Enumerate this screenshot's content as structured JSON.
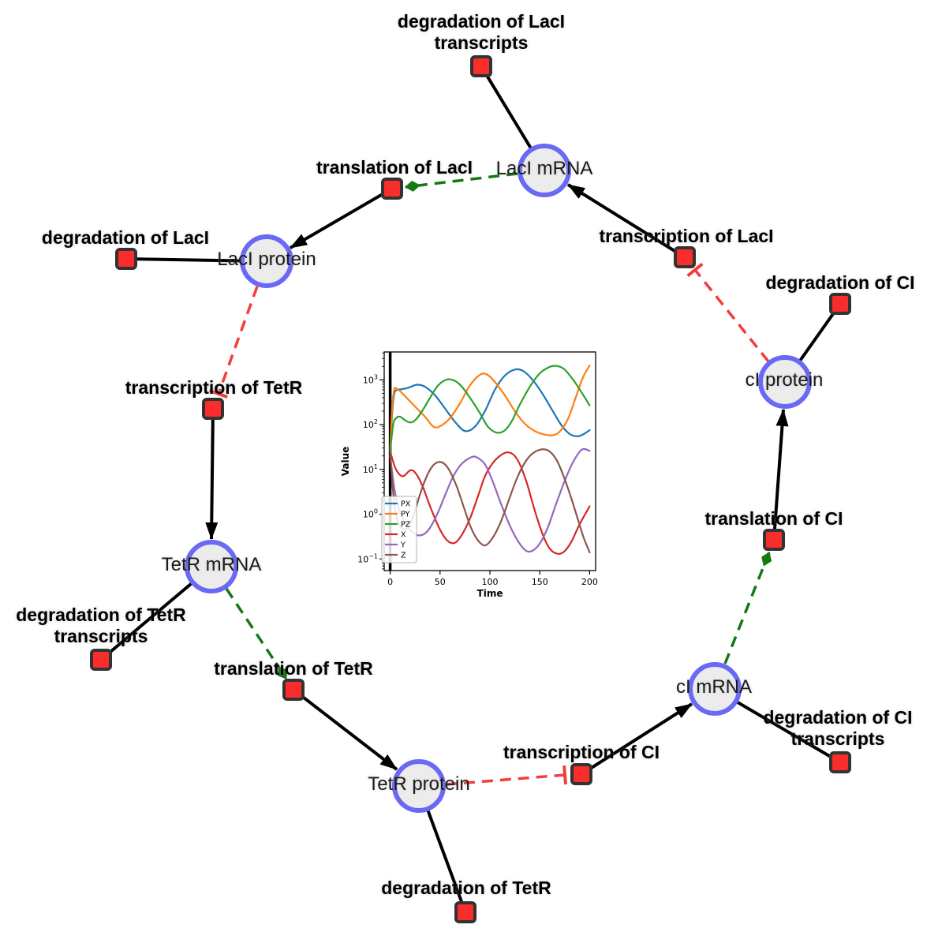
{
  "diagram": {
    "title": "repressilator gene regulatory network",
    "colors": {
      "species_fill": "#ececec",
      "species_border": "#6969f5",
      "reaction_fill": "#fa2d2d",
      "reaction_border": "#333333",
      "edge": "#000000",
      "modifier": "#147814",
      "inhibition": "#f53c3c",
      "background": "#ffffff"
    },
    "species": [
      {
        "label": "LacI mRNA"
      },
      {
        "label": "LacI protein"
      },
      {
        "label": "TetR mRNA"
      },
      {
        "label": "TetR protein"
      },
      {
        "label": "cI mRNA"
      },
      {
        "label": "cI protein"
      }
    ],
    "reactions": [
      {
        "label": "degradation of LacI",
        "label2": "transcripts"
      },
      {
        "label": "translation of LacI"
      },
      {
        "label": "degradation of LacI"
      },
      {
        "label": "transcription of LacI"
      },
      {
        "label": "degradation of CI"
      },
      {
        "label": "transcription of TetR"
      },
      {
        "label": "degradation of TetR",
        "label2": "transcripts"
      },
      {
        "label": "translation of TetR"
      },
      {
        "label": "degradation of TetR"
      },
      {
        "label": "transcription of CI"
      },
      {
        "label": "degradation of CI",
        "label2": "transcripts"
      },
      {
        "label": "translation of CI"
      }
    ]
  },
  "chart_data": {
    "type": "line",
    "title": "",
    "xlabel": "Time",
    "ylabel": "Value",
    "x_ticks": [
      0,
      50,
      100,
      150,
      200
    ],
    "y_ticks": [
      0.1,
      1,
      10,
      100,
      1000
    ],
    "y_scale": "log",
    "xlim": [
      -6,
      206
    ],
    "ylim": [
      0.055,
      4200
    ],
    "axvline_x": 0,
    "grid": false,
    "legend_position": "lower left",
    "series": [
      {
        "name": "PX",
        "color": "#1f77b4",
        "x": [
          0,
          2,
          4,
          7,
          12,
          18,
          27,
          35,
          45,
          55,
          65,
          75,
          85,
          95,
          105,
          115,
          125,
          133,
          142,
          152,
          162,
          172,
          181,
          190,
          200
        ],
        "y": [
          25,
          180,
          480,
          600,
          620,
          665,
          780,
          700,
          450,
          230,
          115,
          72,
          90,
          200,
          600,
          1250,
          1700,
          1600,
          1050,
          520,
          220,
          95,
          60,
          56,
          75
        ]
      },
      {
        "name": "PY",
        "color": "#ff7f0e",
        "x": [
          0,
          2,
          4,
          6,
          10,
          15,
          20,
          28,
          35,
          44,
          52,
          60,
          70,
          80,
          90,
          97,
          105,
          115,
          125,
          135,
          145,
          155,
          163,
          170,
          178,
          186,
          193,
          200
        ],
        "y": [
          25,
          250,
          600,
          645,
          560,
          430,
          330,
          215,
          150,
          88,
          98,
          140,
          300,
          750,
          1300,
          1320,
          900,
          450,
          200,
          105,
          72,
          60,
          58,
          70,
          130,
          400,
          1100,
          2100
        ]
      },
      {
        "name": "PZ",
        "color": "#2ca02c",
        "x": [
          0,
          3,
          6,
          10,
          15,
          20,
          25,
          32,
          40,
          48,
          57,
          65,
          72,
          80,
          90,
          98,
          107,
          115,
          122,
          130,
          140,
          150,
          160,
          167,
          175,
          185,
          193,
          200
        ],
        "y": [
          25,
          100,
          140,
          150,
          125,
          112,
          125,
          200,
          400,
          750,
          1020,
          950,
          700,
          400,
          180,
          90,
          66,
          75,
          120,
          280,
          700,
          1400,
          1950,
          2050,
          1700,
          900,
          480,
          270
        ]
      },
      {
        "name": "X",
        "color": "#d62728",
        "x": [
          0,
          5,
          10,
          14,
          20,
          25,
          32,
          40,
          50,
          58,
          65,
          72,
          80,
          88,
          95,
          103,
          110,
          117,
          124,
          130,
          137,
          145,
          153,
          160,
          168,
          175,
          182,
          190,
          200
        ],
        "y": [
          25,
          11,
          7.5,
          7.2,
          9.5,
          8.5,
          4.5,
          1.5,
          0.45,
          0.25,
          0.23,
          0.35,
          0.8,
          2.5,
          7,
          14,
          20,
          24,
          21,
          13,
          5,
          1.2,
          0.35,
          0.17,
          0.13,
          0.15,
          0.25,
          0.6,
          1.5
        ]
      },
      {
        "name": "Y",
        "color": "#9467bd",
        "x": [
          0,
          4,
          8,
          14,
          20,
          27,
          34,
          40,
          48,
          56,
          64,
          72,
          82,
          88,
          95,
          102,
          110,
          118,
          126,
          135,
          142,
          150,
          158,
          166,
          175,
          183,
          192,
          200
        ],
        "y": [
          20,
          4,
          1.5,
          0.7,
          0.45,
          0.34,
          0.36,
          0.5,
          1.1,
          3,
          7.5,
          13.5,
          19,
          18,
          13,
          6,
          2,
          0.7,
          0.3,
          0.16,
          0.15,
          0.22,
          0.5,
          1.6,
          5.5,
          14,
          27.5,
          26
        ]
      },
      {
        "name": "Z",
        "color": "#8c564b",
        "x": [
          0,
          3,
          6,
          10,
          15,
          20,
          25,
          30,
          36,
          42,
          48,
          54,
          60,
          67,
          74,
          81,
          88,
          95,
          102,
          110,
          118,
          126,
          134,
          142,
          152,
          160,
          167,
          174,
          181,
          188,
          194,
          200
        ],
        "y": [
          25,
          3,
          0.9,
          0.55,
          0.45,
          0.6,
          1.2,
          2.8,
          6.5,
          11.5,
          14.5,
          13.5,
          9,
          4,
          1.4,
          0.5,
          0.26,
          0.2,
          0.28,
          0.6,
          1.8,
          5.5,
          13,
          22,
          28,
          25,
          16,
          7,
          2.5,
          0.8,
          0.3,
          0.14
        ]
      }
    ]
  }
}
